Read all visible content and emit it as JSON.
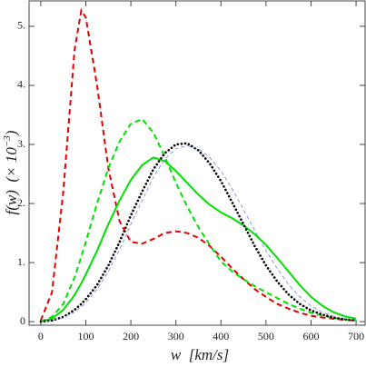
{
  "chart_data": {
    "type": "line",
    "xlabel": "w  [km/s]",
    "ylabel": "f(w)  (× 10",
    "ylabel_exponent": "−3",
    "ylabel_close": ")",
    "x": [
      0,
      25,
      50,
      75,
      90,
      100,
      125,
      150,
      175,
      200,
      225,
      250,
      275,
      300,
      325,
      350,
      375,
      400,
      425,
      450,
      475,
      500,
      525,
      550,
      575,
      600,
      625,
      650,
      675,
      700
    ],
    "series": [
      {
        "color": "#e00000",
        "style": "dashed",
        "values": [
          0.02,
          0.5,
          2.2,
          4.6,
          5.27,
          5.15,
          4.0,
          2.6,
          1.7,
          1.35,
          1.32,
          1.4,
          1.5,
          1.53,
          1.5,
          1.42,
          1.28,
          1.1,
          0.9,
          0.72,
          0.55,
          0.42,
          0.3,
          0.22,
          0.15,
          0.1,
          0.07,
          0.05,
          0.03,
          0.02
        ]
      },
      {
        "color": "#00e000",
        "style": "dashed",
        "values": [
          0,
          0.08,
          0.3,
          0.75,
          1.1,
          1.35,
          2.0,
          2.6,
          3.05,
          3.35,
          3.43,
          3.2,
          2.8,
          2.35,
          1.95,
          1.6,
          1.3,
          1.02,
          0.85,
          0.72,
          0.6,
          0.5,
          0.4,
          0.3,
          0.22,
          0.15,
          0.1,
          0.06,
          0.04,
          0.02
        ]
      },
      {
        "color": "#00e000",
        "style": "solid",
        "values": [
          0,
          0.05,
          0.2,
          0.45,
          0.65,
          0.8,
          1.2,
          1.65,
          2.05,
          2.4,
          2.65,
          2.78,
          2.72,
          2.55,
          2.35,
          2.15,
          1.98,
          1.85,
          1.75,
          1.63,
          1.48,
          1.3,
          1.08,
          0.85,
          0.62,
          0.42,
          0.27,
          0.16,
          0.09,
          0.05
        ]
      },
      {
        "color": "#000000",
        "style": "dotted",
        "values": [
          0,
          0.02,
          0.08,
          0.2,
          0.3,
          0.38,
          0.62,
          0.95,
          1.35,
          1.8,
          2.2,
          2.58,
          2.85,
          3.0,
          3.02,
          2.9,
          2.68,
          2.38,
          2.02,
          1.65,
          1.28,
          0.95,
          0.68,
          0.46,
          0.3,
          0.19,
          0.12,
          0.07,
          0.04,
          0.02
        ]
      },
      {
        "color": "#6a7fe0",
        "style": "thin-dashed",
        "values": [
          0,
          0.02,
          0.07,
          0.16,
          0.25,
          0.32,
          0.55,
          0.85,
          1.22,
          1.65,
          2.05,
          2.45,
          2.75,
          2.93,
          2.98,
          2.93,
          2.78,
          2.55,
          2.25,
          1.9,
          1.55,
          1.2,
          0.9,
          0.63,
          0.42,
          0.27,
          0.16,
          0.09,
          0.05,
          0.03
        ]
      }
    ],
    "xlim": [
      -26,
      720
    ],
    "ylim": [
      -0.06,
      5.43
    ],
    "xticks": [
      0,
      100,
      200,
      300,
      400,
      500,
      600,
      700
    ],
    "yticks": [
      0,
      {
        "value": 1,
        "label": "1."
      },
      {
        "value": 2,
        "label": "2."
      },
      {
        "value": 3,
        "label": "3."
      },
      {
        "value": 4,
        "label": "4."
      },
      {
        "value": 5,
        "label": "5."
      }
    ]
  }
}
